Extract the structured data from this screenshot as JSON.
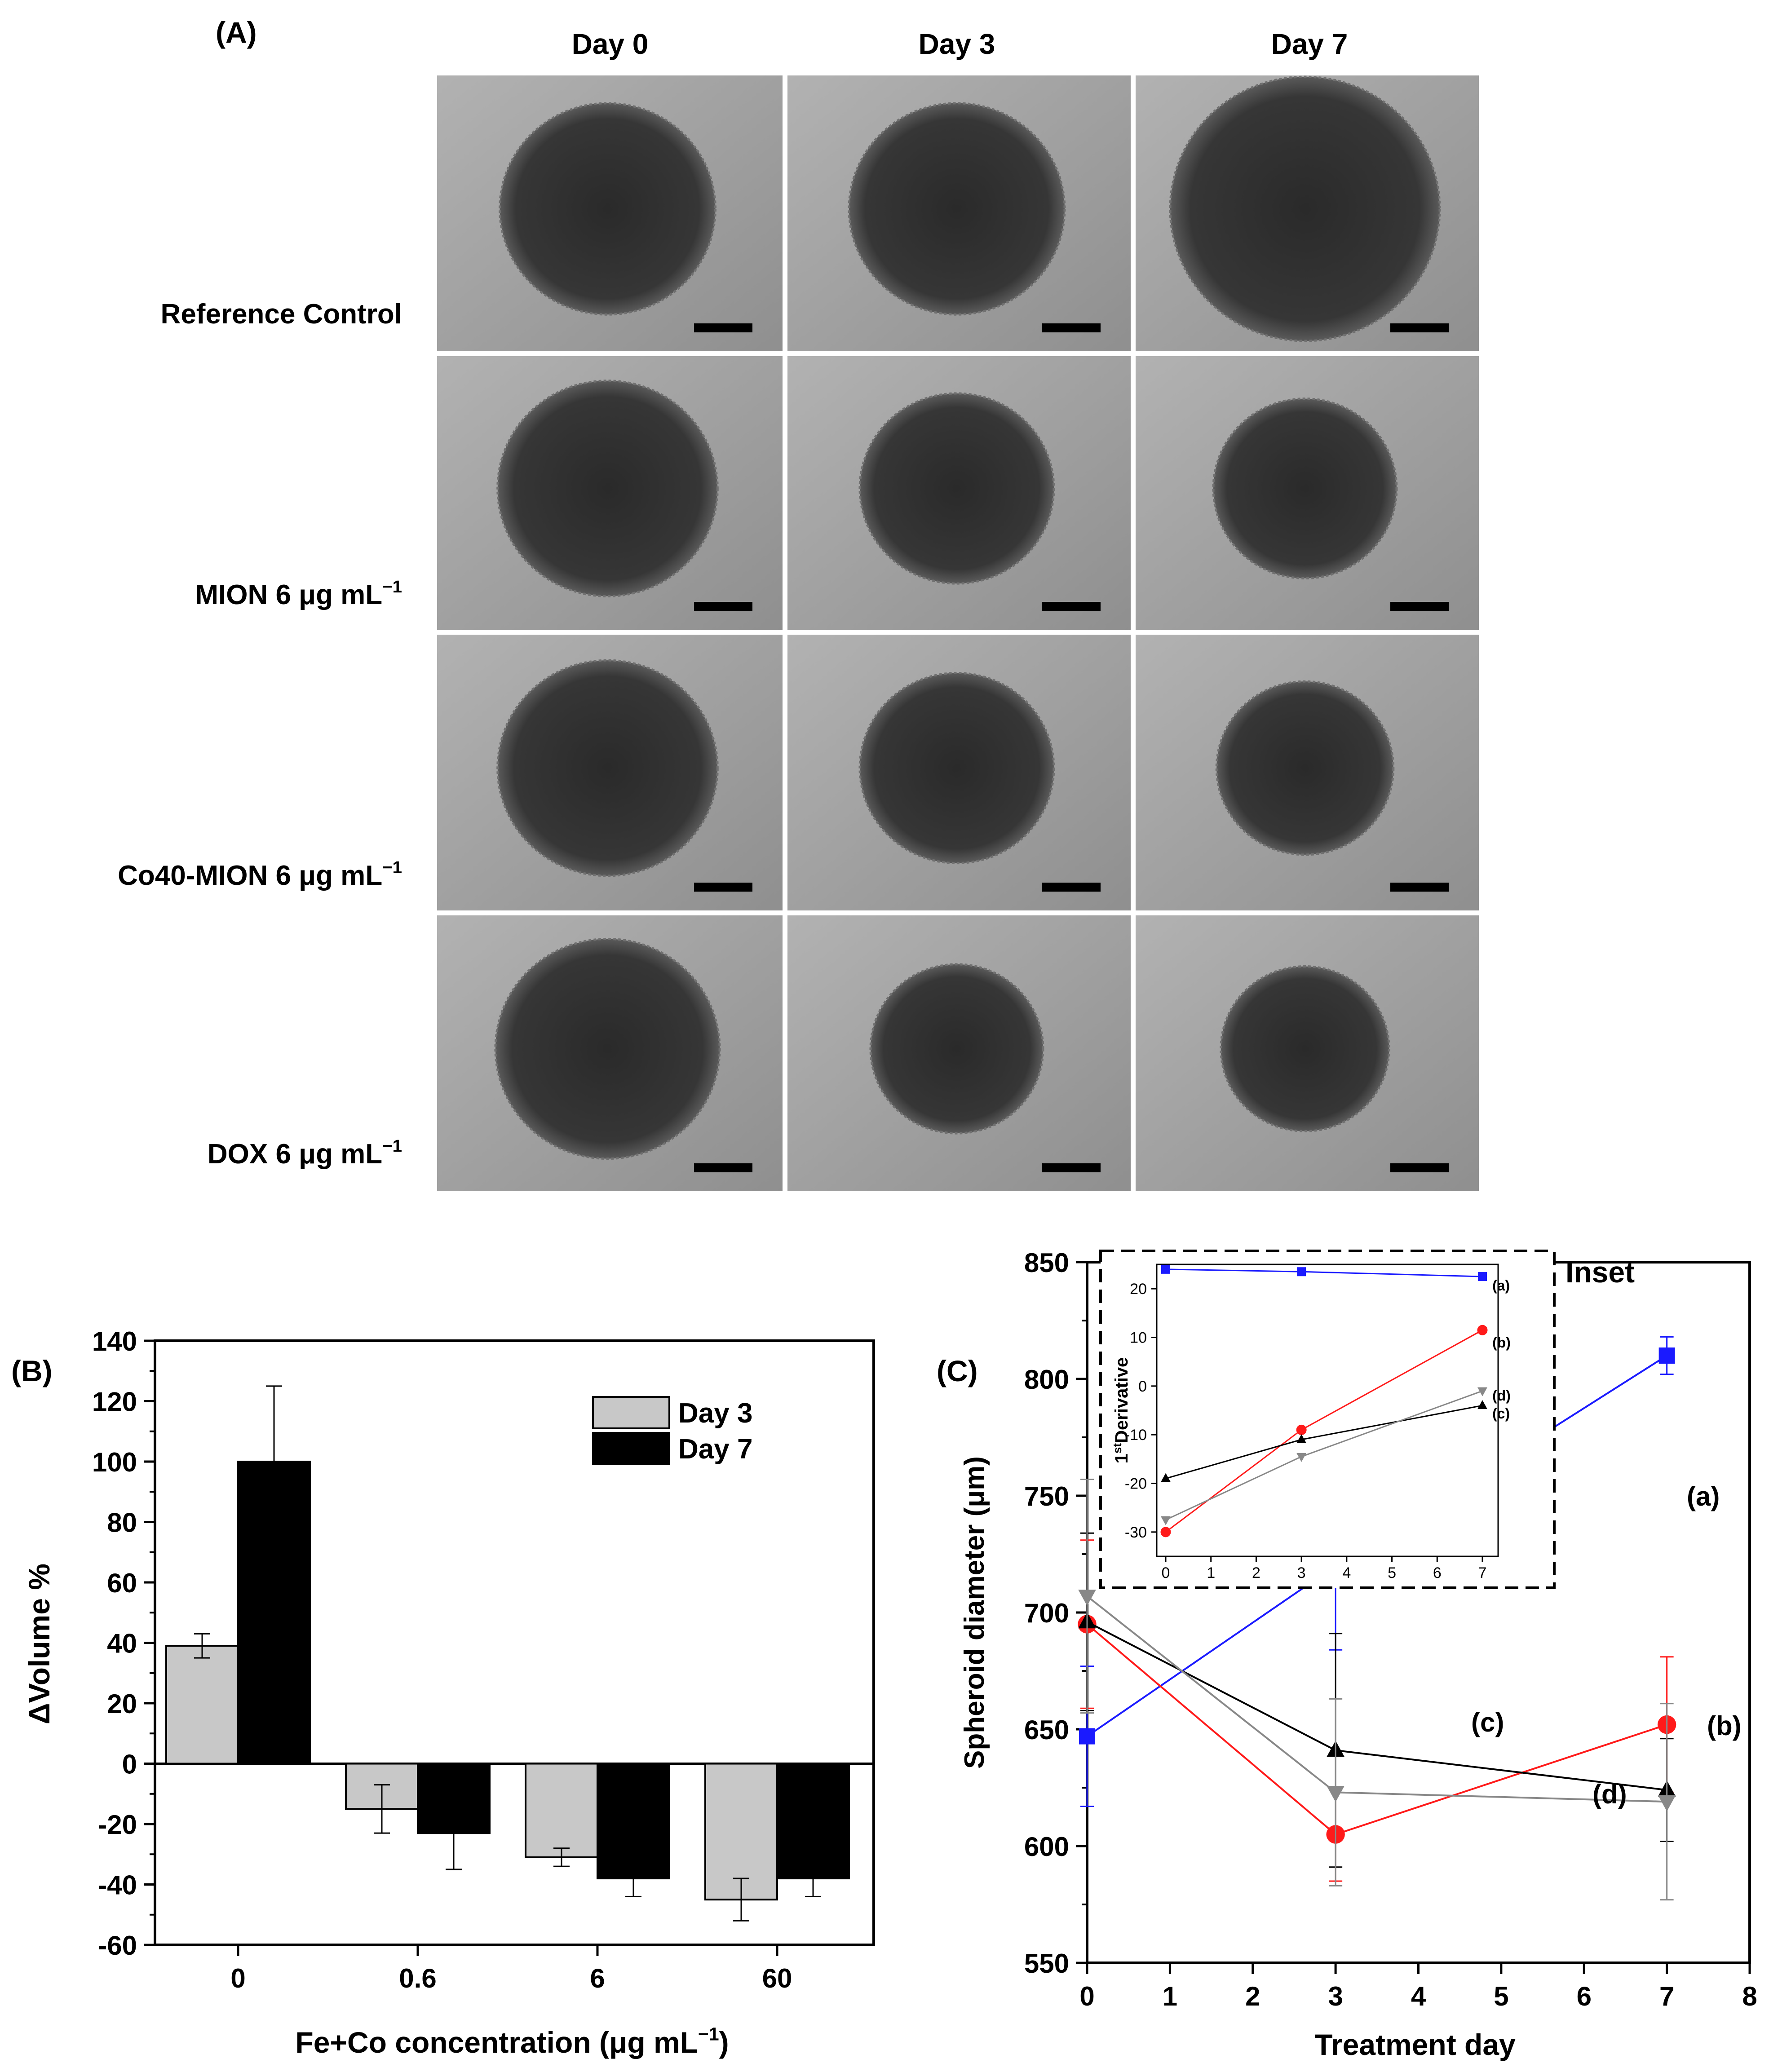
{
  "panel_a": {
    "tag": "(A)",
    "columns": [
      "Day 0",
      "Day 3",
      "Day 7"
    ],
    "rows": [
      {
        "label": "Reference Control",
        "sup": ""
      },
      {
        "label": "MION 6 μg mL",
        "sup": "−1"
      },
      {
        "label": "Co40-MION 6 μg mL",
        "sup": "−1"
      },
      {
        "label": "DOX 6 μg mL",
        "sup": "−1"
      }
    ],
    "spheroid_scale": [
      [
        1.0,
        1.0,
        1.25
      ],
      [
        1.02,
        0.9,
        0.85
      ],
      [
        1.02,
        0.9,
        0.82
      ],
      [
        1.04,
        0.8,
        0.78
      ]
    ],
    "colors": {
      "bg": "#9d9d9d",
      "spheroid": "#2f2f2f",
      "scalebar": "#000000"
    }
  },
  "chart_data": [
    {
      "id": "B",
      "tag": "(B)",
      "type": "bar",
      "categories": [
        "0",
        "0.6",
        "6",
        "60"
      ],
      "series": [
        {
          "name": "Day 3",
          "values": [
            39,
            -15,
            -31,
            -45
          ],
          "errors": [
            4,
            8,
            3,
            7
          ],
          "color": "#c8c8c8"
        },
        {
          "name": "Day 7",
          "values": [
            100,
            -23,
            -38,
            -38
          ],
          "errors": [
            25,
            12,
            6,
            6
          ],
          "color": "#000000"
        }
      ],
      "xlabel": "Fe+Co concentration (μg mL",
      "xlabel_sup": "−1",
      "xlabel_suffix": ")",
      "ylabel": "ΔVolume %",
      "ylim": [
        -60,
        140
      ],
      "yticks": [
        "-60",
        "-40",
        "-20",
        "0",
        "20",
        "40",
        "60",
        "80",
        "100",
        "120",
        "140"
      ],
      "legend": "top-right"
    },
    {
      "id": "C",
      "tag": "(C)",
      "type": "line",
      "x": [
        0,
        3,
        7
      ],
      "series": [
        {
          "name": "(a)",
          "values": [
            647,
            720,
            810
          ],
          "errors": [
            30,
            36,
            8
          ],
          "color": "#1a1aff",
          "marker": "square"
        },
        {
          "name": "(b)",
          "values": [
            695,
            605,
            652
          ],
          "errors": [
            36,
            20,
            29
          ],
          "color": "#ff1a1a",
          "marker": "circle"
        },
        {
          "name": "(c)",
          "values": [
            696,
            641,
            624
          ],
          "errors": [
            38,
            50,
            22
          ],
          "color": "#000000",
          "marker": "triangle-up"
        },
        {
          "name": "(d)",
          "values": [
            707,
            623,
            619
          ],
          "errors": [
            50,
            40,
            42
          ],
          "color": "#888888",
          "marker": "triangle-down"
        }
      ],
      "xlabel": "Treatment day",
      "ylabel": "Spheroid diameter (μm)",
      "xlim": [
        0,
        8
      ],
      "ylim": [
        550,
        850
      ],
      "xticks": [
        "0",
        "1",
        "2",
        "3",
        "4",
        "5",
        "6",
        "7",
        "8"
      ],
      "yticks": [
        "550",
        "600",
        "650",
        "700",
        "750",
        "800",
        "850"
      ]
    },
    {
      "id": "C-inset",
      "tag": "Inset",
      "type": "line",
      "x": [
        0,
        3,
        7
      ],
      "series": [
        {
          "name": "(a)",
          "values": [
            24,
            23.5,
            22.5
          ],
          "color": "#1a1aff",
          "marker": "square"
        },
        {
          "name": "(b)",
          "values": [
            -30,
            -9,
            11.5
          ],
          "color": "#ff1a1a",
          "marker": "circle"
        },
        {
          "name": "(c)",
          "values": [
            -19,
            -11,
            -4
          ],
          "color": "#000000",
          "marker": "triangle-up"
        },
        {
          "name": "(d)",
          "values": [
            -27.5,
            -14.5,
            -1
          ],
          "color": "#888888",
          "marker": "triangle-down"
        }
      ],
      "ylabel": "1",
      "ylabel_sup": "st",
      "ylabel_suffix": "Derivative",
      "xlim": [
        0,
        7
      ],
      "ylim": [
        -35,
        25
      ],
      "xticks": [
        "0",
        "1",
        "2",
        "3",
        "4",
        "5",
        "6",
        "7"
      ],
      "yticks": [
        "-30",
        "-20",
        "-10",
        "0",
        "10",
        "20"
      ]
    }
  ]
}
